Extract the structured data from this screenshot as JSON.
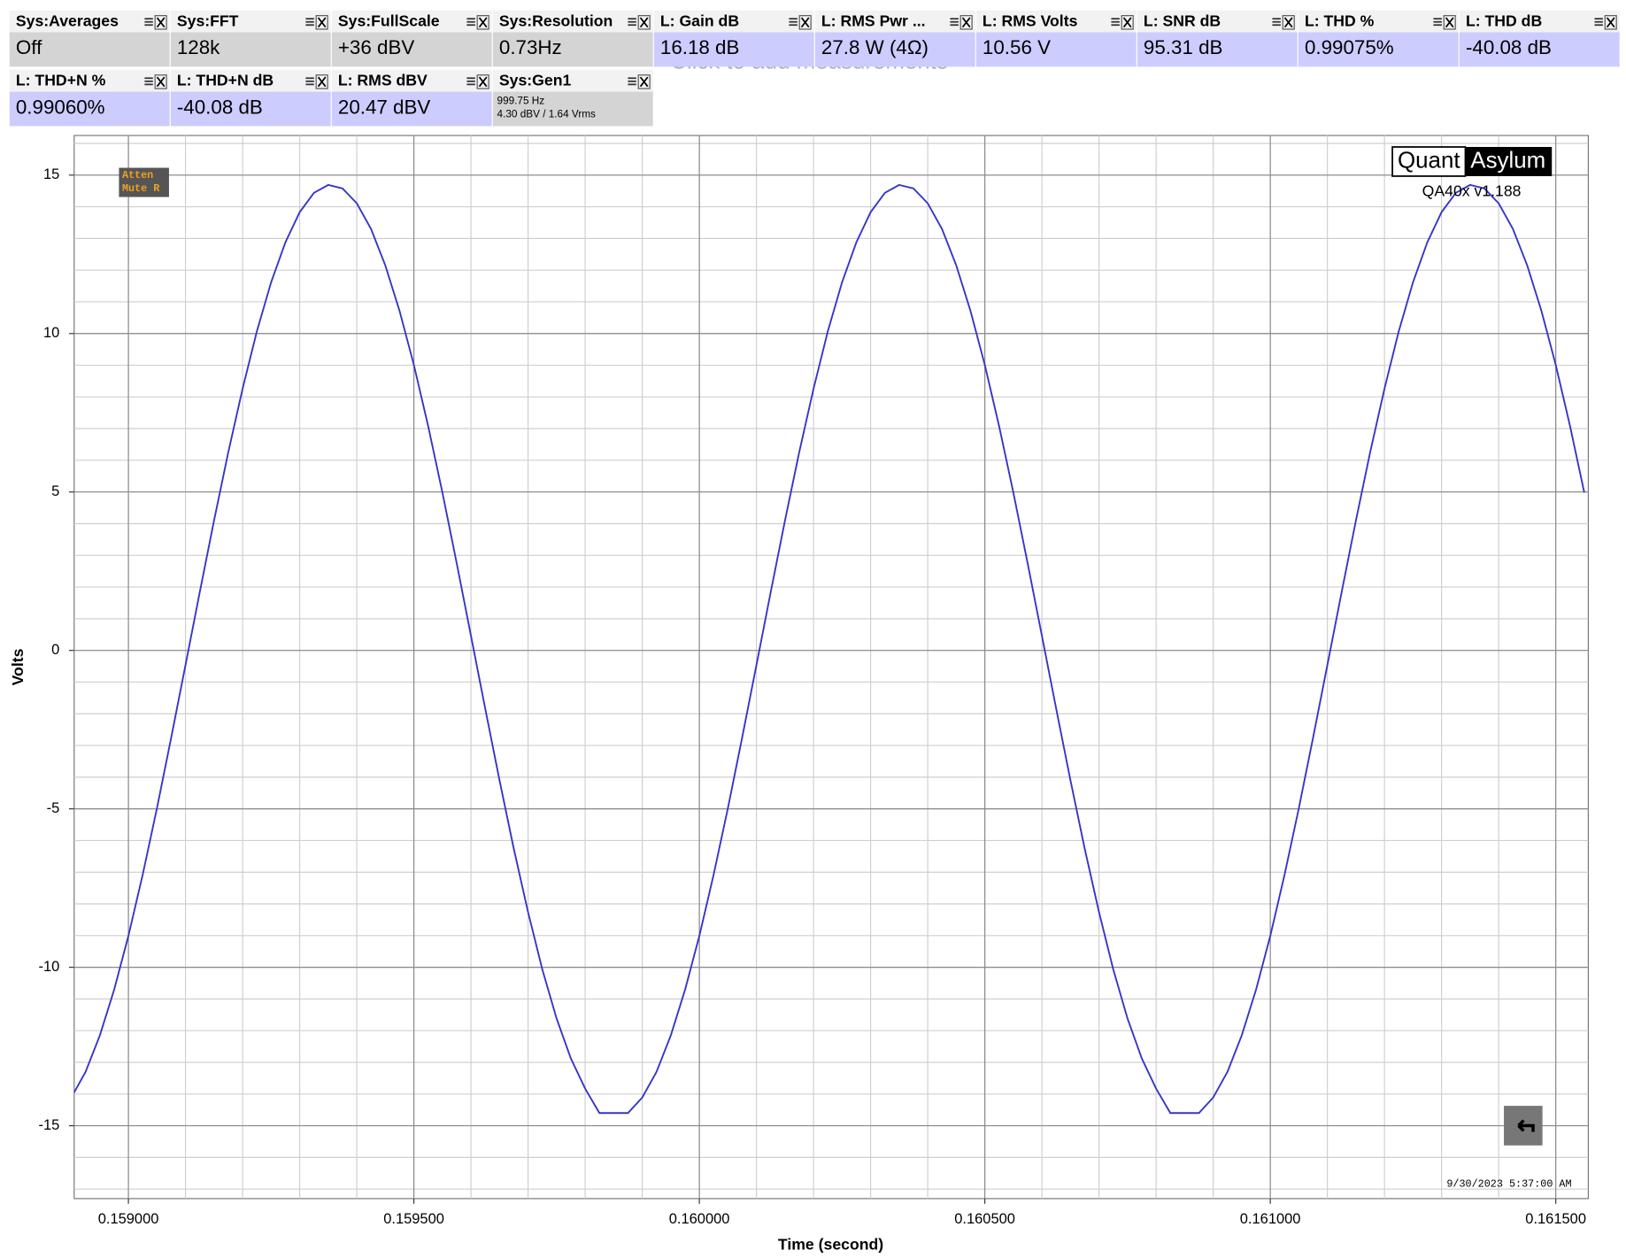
{
  "hint": "Click to add measurements",
  "tiles": [
    {
      "title": "Sys:Averages",
      "value": "Off",
      "color": "#d4d4d4"
    },
    {
      "title": "Sys:FFT",
      "value": "128k",
      "color": "#d4d4d4"
    },
    {
      "title": "Sys:FullScale",
      "value": "+36 dBV",
      "color": "#d4d4d4"
    },
    {
      "title": "Sys:Resolution",
      "value": "0.73Hz",
      "color": "#d4d4d4"
    },
    {
      "title": "L: Gain dB",
      "value": "16.18 dB",
      "color": "#ccccff"
    },
    {
      "title": "L: RMS Pwr ...",
      "value": "27.8 W (4Ω)",
      "color": "#ccccff"
    },
    {
      "title": "L: RMS Volts",
      "value": "10.56 V",
      "color": "#ccccff"
    },
    {
      "title": "L: SNR dB",
      "value": "95.31 dB",
      "color": "#ccccff"
    },
    {
      "title": "L: THD %",
      "value": "0.99075%",
      "color": "#ccccff"
    },
    {
      "title": "L: THD dB",
      "value": "-40.08 dB",
      "color": "#ccccff"
    },
    {
      "title": "L: THD+N %",
      "value": "0.99060%",
      "color": "#ccccff"
    },
    {
      "title": "L: THD+N dB",
      "value": "-40.08 dB",
      "color": "#ccccff"
    },
    {
      "title": "L: RMS dBV",
      "value": "20.47 dBV",
      "color": "#ccccff"
    },
    {
      "title": "Sys:Gen1",
      "lines": [
        "999.75 Hz",
        "4.30 dBV  / 1.64 Vrms"
      ],
      "color": "#d4d4d4"
    }
  ],
  "badge": [
    "Atten",
    "Mute R"
  ],
  "brand": {
    "left": "Quant",
    "right": "Asylum",
    "version": "QA40x v1.188"
  },
  "timestamp": "9/30/2023 5:37:00 AM",
  "chart_data": {
    "type": "line",
    "x_label": "Time (second)",
    "y_label": "Volts",
    "xlim": [
      0.158905,
      0.161557
    ],
    "ylim": [
      -17.3,
      16.25
    ],
    "xticks": [
      {
        "value": 0.159,
        "label": "0.159000"
      },
      {
        "value": 0.1595,
        "label": "0.159500"
      },
      {
        "value": 0.16,
        "label": "0.160000"
      },
      {
        "value": 0.1605,
        "label": "0.160500"
      },
      {
        "value": 0.161,
        "label": "0.161000"
      },
      {
        "value": 0.1615,
        "label": "0.161500"
      }
    ],
    "yticks": [
      -15,
      -10,
      -5,
      0,
      5,
      10,
      15
    ],
    "grid": true,
    "minor_grid": {
      "x": 0.0001,
      "y": 1
    },
    "x": [
      0.1589,
      0.158925,
      0.15895,
      0.158975,
      0.159,
      0.159025,
      0.15905,
      0.159075,
      0.1591,
      0.159125,
      0.15915,
      0.159175,
      0.1592,
      0.159225,
      0.15925,
      0.159275,
      0.1593,
      0.159325,
      0.15935,
      0.159375,
      0.1594,
      0.159425,
      0.15945,
      0.159475,
      0.1595,
      0.159525,
      0.15955,
      0.159575,
      0.1596,
      0.159625,
      0.15965,
      0.159675,
      0.1597,
      0.159725,
      0.15975,
      0.159775,
      0.1598,
      0.159825,
      0.15985,
      0.159875,
      0.1599,
      0.159925,
      0.15995,
      0.159975,
      0.16,
      0.160025,
      0.16005,
      0.160075,
      0.1601,
      0.160125,
      0.16015,
      0.160175,
      0.1602,
      0.160225,
      0.16025,
      0.160275,
      0.1603,
      0.160325,
      0.16035,
      0.160375,
      0.1604,
      0.160425,
      0.16045,
      0.160475,
      0.1605,
      0.160525,
      0.16055,
      0.160575,
      0.1606,
      0.160625,
      0.16065,
      0.160675,
      0.1607,
      0.160725,
      0.16075,
      0.160775,
      0.1608,
      0.160825,
      0.16085,
      0.160875,
      0.1609,
      0.160925,
      0.16095,
      0.160975,
      0.161,
      0.161025,
      0.16105,
      0.161075,
      0.1611,
      0.161125,
      0.16115,
      0.161175,
      0.1612,
      0.161225,
      0.16125,
      0.161275,
      0.1613,
      0.161325,
      0.16135,
      0.161375,
      0.1614,
      0.161425,
      0.16145,
      0.161475,
      0.1615,
      0.161525,
      0.16155
    ],
    "series": [
      {
        "color": "#3535c8",
        "values": [
          -14.11,
          -13.3,
          -12.15,
          -10.71,
          -9.01,
          -7.08,
          -4.98,
          -2.75,
          -0.46,
          1.84,
          4.1,
          6.26,
          8.26,
          10.07,
          11.62,
          12.88,
          13.83,
          14.44,
          14.69,
          14.58,
          14.11,
          13.3,
          12.15,
          10.71,
          9.01,
          7.08,
          4.98,
          2.75,
          0.46,
          -1.84,
          -4.1,
          -6.26,
          -8.26,
          -10.07,
          -11.62,
          -12.88,
          -13.83,
          -14.6,
          -14.6,
          -14.6,
          -14.11,
          -13.3,
          -12.15,
          -10.71,
          -9.01,
          -7.08,
          -4.98,
          -2.75,
          -0.46,
          1.84,
          4.1,
          6.26,
          8.26,
          10.07,
          11.62,
          12.88,
          13.83,
          14.44,
          14.69,
          14.58,
          14.11,
          13.3,
          12.15,
          10.71,
          9.01,
          7.08,
          4.98,
          2.75,
          0.46,
          -1.84,
          -4.1,
          -6.26,
          -8.26,
          -10.07,
          -11.62,
          -12.88,
          -13.83,
          -14.6,
          -14.6,
          -14.6,
          -14.11,
          -13.3,
          -12.15,
          -10.71,
          -9.01,
          -7.08,
          -4.98,
          -2.75,
          -0.46,
          1.84,
          4.1,
          6.26,
          8.26,
          10.07,
          11.62,
          12.88,
          13.83,
          14.44,
          14.69,
          14.58,
          14.11,
          13.3,
          12.15,
          10.71,
          9.01,
          7.08,
          4.98
        ]
      }
    ]
  }
}
